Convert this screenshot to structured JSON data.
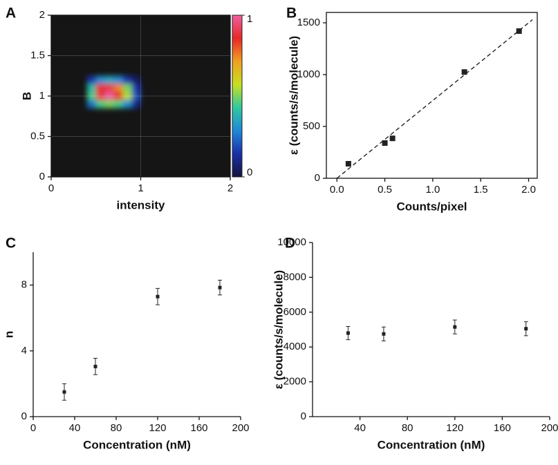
{
  "chart_data": [
    {
      "type": "heatmap",
      "panel_label": "A",
      "xlabel": "intensity",
      "ylabel": "B",
      "x": [
        0.45,
        0.55,
        0.65,
        0.75,
        0.85,
        0.95
      ],
      "y": [
        0.9,
        1.0,
        1.1,
        1.2
      ],
      "z": [
        [
          0.25,
          0.45,
          0.5,
          0.45,
          0.3,
          0.1
        ],
        [
          0.45,
          0.9,
          1.0,
          0.85,
          0.55,
          0.2
        ],
        [
          0.4,
          0.85,
          0.9,
          0.75,
          0.5,
          0.15
        ],
        [
          0.15,
          0.3,
          0.35,
          0.3,
          0.15,
          0.05
        ]
      ],
      "xlim": [
        0,
        2
      ],
      "ylim": [
        0,
        2
      ],
      "xticks": [
        0,
        1,
        2
      ],
      "yticks": [
        0,
        0.5,
        1,
        1.5,
        2
      ],
      "zlim": [
        0,
        1
      ],
      "zticks": [
        0,
        1
      ],
      "colormap": [
        "#14143c",
        "#1a2fa8",
        "#1e88d8",
        "#30c8a0",
        "#c8e020",
        "#f0a020",
        "#e82828",
        "#f060a0"
      ],
      "background": "#151515",
      "grid": true
    },
    {
      "type": "scatter",
      "panel_label": "B",
      "xlabel": "Counts/pixel",
      "ylabel": "ε (counts/s/molecule)",
      "series": [
        {
          "mode": "markers",
          "color": "#222222",
          "x": [
            0.12,
            0.5,
            0.58,
            1.33,
            1.9
          ],
          "values": [
            140,
            340,
            385,
            1025,
            1420
          ]
        },
        {
          "mode": "dashed-line",
          "color": "#222222",
          "x": [
            0,
            2.04
          ],
          "values": [
            0,
            1530
          ]
        }
      ],
      "xlim": [
        -0.11,
        2.09
      ],
      "ylim": [
        0,
        1600
      ],
      "xticks": [
        {
          "value": 0,
          "label": "0.0"
        },
        {
          "value": 0.5,
          "label": "0.5"
        },
        {
          "value": 1,
          "label": "1.0"
        },
        {
          "value": 1.5,
          "label": "1.5"
        },
        {
          "value": 2,
          "label": "2.0"
        }
      ],
      "yticks": [
        0,
        500,
        1000,
        1500
      ]
    },
    {
      "type": "errorbar",
      "panel_label": "C",
      "xlabel": "Concentration (nM)",
      "ylabel": "n",
      "x": [
        30,
        60,
        120,
        180
      ],
      "values": [
        1.5,
        3.05,
        7.3,
        7.85
      ],
      "errors": [
        0.5,
        0.5,
        0.5,
        0.45
      ],
      "color": "#222222",
      "xlim": [
        0,
        200
      ],
      "ylim": [
        0,
        10
      ],
      "xticks": [
        0,
        40,
        80,
        120,
        160,
        200
      ],
      "yticks": [
        0,
        4,
        8
      ]
    },
    {
      "type": "errorbar",
      "panel_label": "D",
      "xlabel": "Concentration (nM)",
      "ylabel": "ε (counts/s/molecule)",
      "x": [
        30,
        60,
        120,
        180
      ],
      "values": [
        4800,
        4750,
        5150,
        5050
      ],
      "errors": [
        380,
        400,
        400,
        400
      ],
      "color": "#222222",
      "xlim": [
        0,
        200
      ],
      "ylim": [
        0,
        10000
      ],
      "xticks": [
        40,
        80,
        120,
        160,
        200
      ],
      "yticks": [
        0,
        2000,
        4000,
        6000,
        8000,
        10000
      ]
    }
  ]
}
